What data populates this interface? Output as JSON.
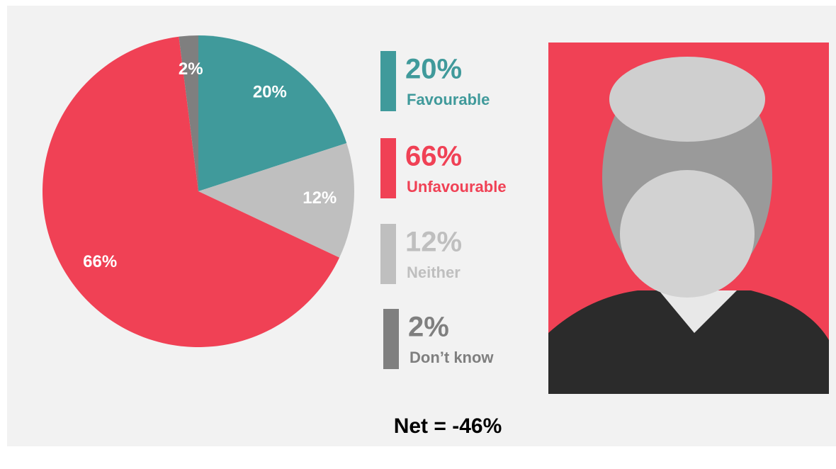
{
  "chart_data": {
    "type": "pie",
    "categories": [
      "Favourable",
      "Neither",
      "Unfavourable",
      "Don’t know"
    ],
    "values": [
      20,
      12,
      66,
      2
    ],
    "value_labels": [
      "20%",
      "12%",
      "66%",
      "2%"
    ],
    "colors": [
      "#409a9b",
      "#bfbfbf",
      "#f04155",
      "#7f7f7f"
    ],
    "annotation": "Net = -46%"
  }
}
